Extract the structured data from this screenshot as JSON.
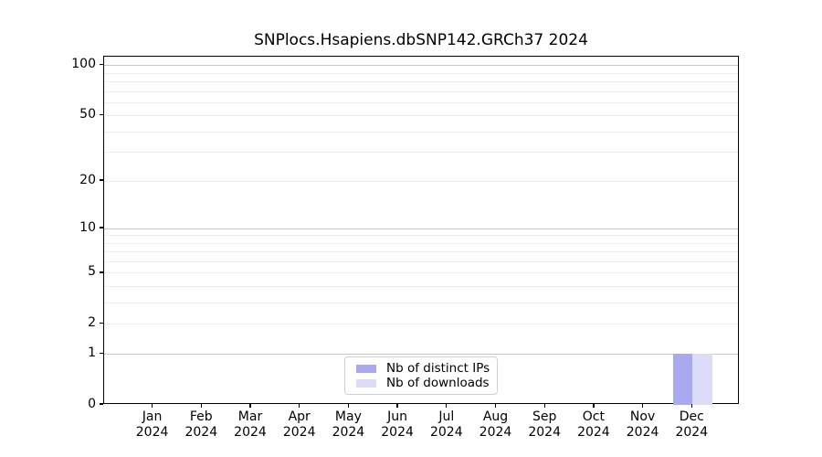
{
  "chart_data": {
    "type": "bar",
    "title": "SNPlocs.Hsapiens.dbSNP142.GRCh37 2024",
    "categories": [
      "Jan",
      "Feb",
      "Mar",
      "Apr",
      "May",
      "Jun",
      "Jul",
      "Aug",
      "Sep",
      "Oct",
      "Nov",
      "Dec"
    ],
    "x_sub_label": "2024",
    "series": [
      {
        "name": "Nb of distinct IPs",
        "color": "#a9a9f0",
        "values": [
          0,
          0,
          0,
          0,
          0,
          0,
          0,
          0,
          0,
          0,
          0,
          1
        ]
      },
      {
        "name": "Nb of downloads",
        "color": "#dcdcf8",
        "values": [
          0,
          0,
          0,
          0,
          0,
          0,
          0,
          0,
          0,
          0,
          0,
          1
        ]
      }
    ],
    "yaxis": {
      "scale": "log1p",
      "ticks": [
        0,
        1,
        2,
        5,
        10,
        20,
        50,
        100
      ],
      "major_gridlines": [
        1,
        10,
        100
      ],
      "minor_gridlines": [
        2,
        3,
        4,
        5,
        6,
        7,
        8,
        9,
        20,
        30,
        40,
        50,
        60,
        70,
        80,
        90
      ],
      "ylim": [
        0,
        113
      ]
    },
    "legend": {
      "position": "lower-center",
      "entries": [
        "Nb of distinct IPs",
        "Nb of downloads"
      ]
    },
    "grid": true,
    "xlabel": "",
    "ylabel": ""
  },
  "colors": {
    "major_grid": "#c6c6c6",
    "minor_grid": "#ededed",
    "axis": "#000000",
    "legend_border": "#cfcfcf",
    "background": "#ffffff"
  }
}
